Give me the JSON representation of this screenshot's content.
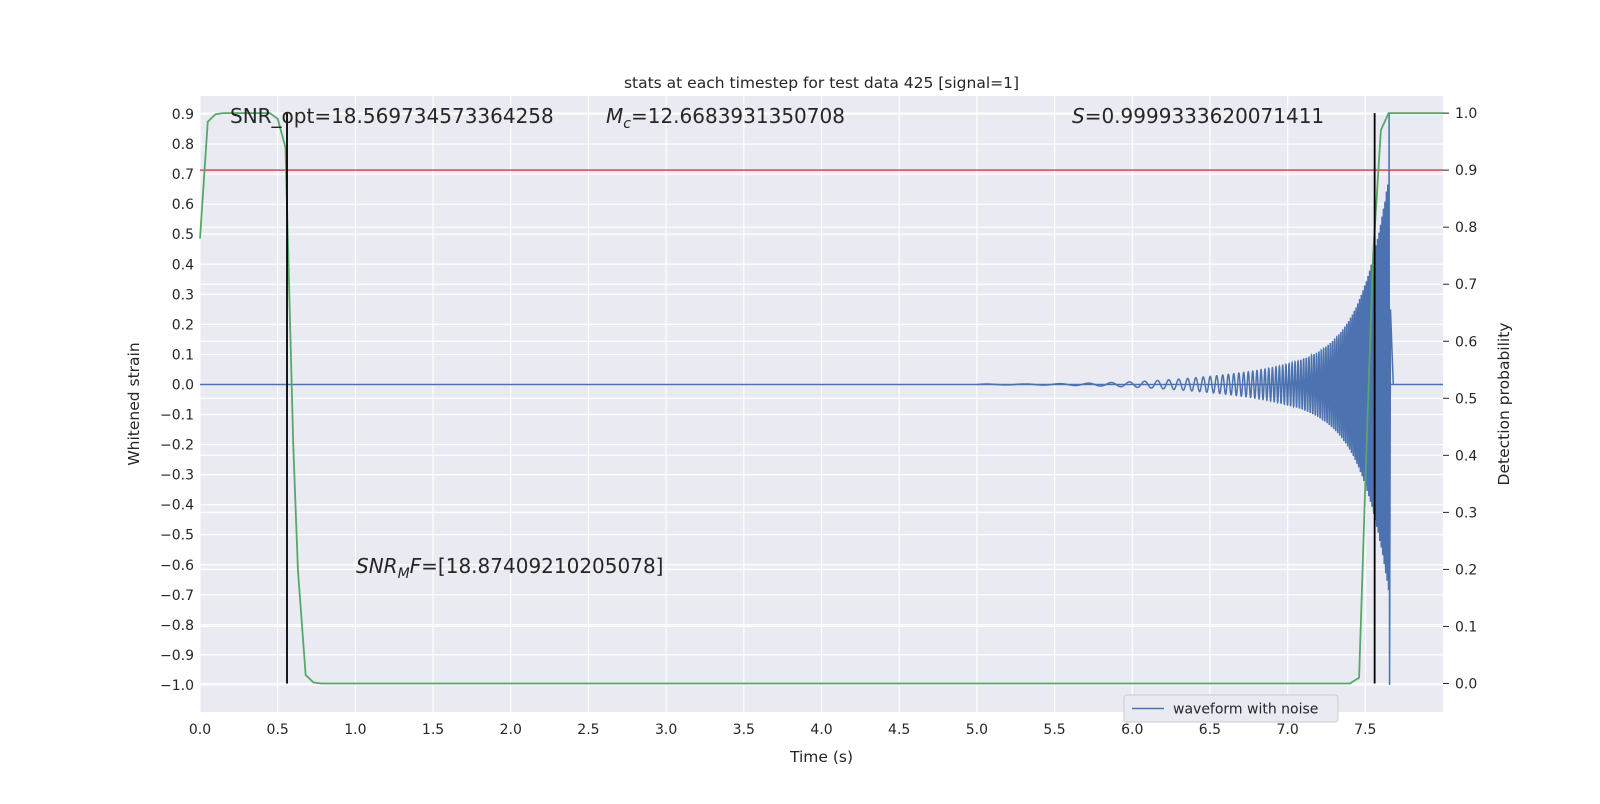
{
  "chart_data": {
    "type": "line",
    "title": "stats at each timestep for test data 425 [signal=1]",
    "xlabel": "Time (s)",
    "ylabel_left": "Whitened strain",
    "ylabel_right": "Detection probability",
    "xlim": [
      0.0,
      8.0
    ],
    "ylim_left": [
      -1.09,
      0.96
    ],
    "ylim_right": [
      -0.05,
      1.03
    ],
    "x_ticks": [
      "0.0",
      "0.5",
      "1.0",
      "1.5",
      "2.0",
      "2.5",
      "3.0",
      "3.5",
      "4.0",
      "4.5",
      "5.0",
      "5.5",
      "6.0",
      "6.5",
      "7.0",
      "7.5"
    ],
    "y_left_ticks": [
      "0.9",
      "0.8",
      "0.7",
      "0.6",
      "0.5",
      "0.4",
      "0.3",
      "0.2",
      "0.1",
      "0.0",
      "−0.1",
      "−0.2",
      "−0.3",
      "−0.4",
      "−0.5",
      "−0.6",
      "−0.7",
      "−0.8",
      "−0.9",
      "−1.0"
    ],
    "y_right_ticks": [
      "0.0",
      "0.1",
      "0.2",
      "0.3",
      "0.4",
      "0.5",
      "0.6",
      "0.7",
      "0.8",
      "0.9",
      "1.0"
    ],
    "grid": true,
    "legend_position": "lower right",
    "annotations": {
      "snr_opt": "SNR_opt=18.569734573364258",
      "mc_symbol": "M",
      "mc_sub": "c",
      "mc_value": "=12.6683931350708",
      "s_symbol": "S",
      "s_value": "=0.9999333620071411",
      "snrmf_symbol": "SNR",
      "snrmf_sub": "M",
      "snrmf_F": "F",
      "snrmf_value": "=[18.87409210205078]"
    },
    "series": [
      {
        "name": "waveform with noise",
        "axis": "left",
        "color": "#4c72b0",
        "description": "chirp signal; zero until ~5.0 s, oscillation amplitude grows toward merger at ~7.65 s",
        "chirp": {
          "start": 5.0,
          "merger": 7.65,
          "ringdown_end": 7.68,
          "end_amplitude_min": -1.0,
          "end_amplitude_max": 0.9
        }
      },
      {
        "name": "detection probability",
        "axis": "right",
        "color": "#55a868",
        "x": [
          0.0,
          0.05,
          0.1,
          0.15,
          0.2,
          0.3,
          0.4,
          0.45,
          0.5,
          0.52,
          0.55,
          0.6,
          0.63,
          0.68,
          0.73,
          0.78,
          1.0,
          2.0,
          3.0,
          4.0,
          5.0,
          6.0,
          7.0,
          7.4,
          7.46,
          7.5,
          7.55,
          7.6,
          7.65,
          7.7,
          8.0
        ],
        "y": [
          0.78,
          0.985,
          0.998,
          1.0,
          1.0,
          1.0,
          1.0,
          1.0,
          0.99,
          0.97,
          0.94,
          0.42,
          0.2,
          0.015,
          0.002,
          0.0,
          0.0,
          0.0,
          0.0,
          0.0,
          0.0,
          0.0,
          0.0,
          0.0,
          0.01,
          0.35,
          0.75,
          0.97,
          1.0,
          1.0,
          1.0
        ]
      }
    ],
    "threshold": {
      "axis": "right",
      "value": 0.9,
      "color": "#c44e52"
    },
    "vertical_lines": [
      0.56,
      7.56
    ],
    "vline_range_right": [
      0.0,
      1.0
    ],
    "zero_line": {
      "axis": "left",
      "value": 0.0,
      "color": "#4c72b0"
    }
  }
}
